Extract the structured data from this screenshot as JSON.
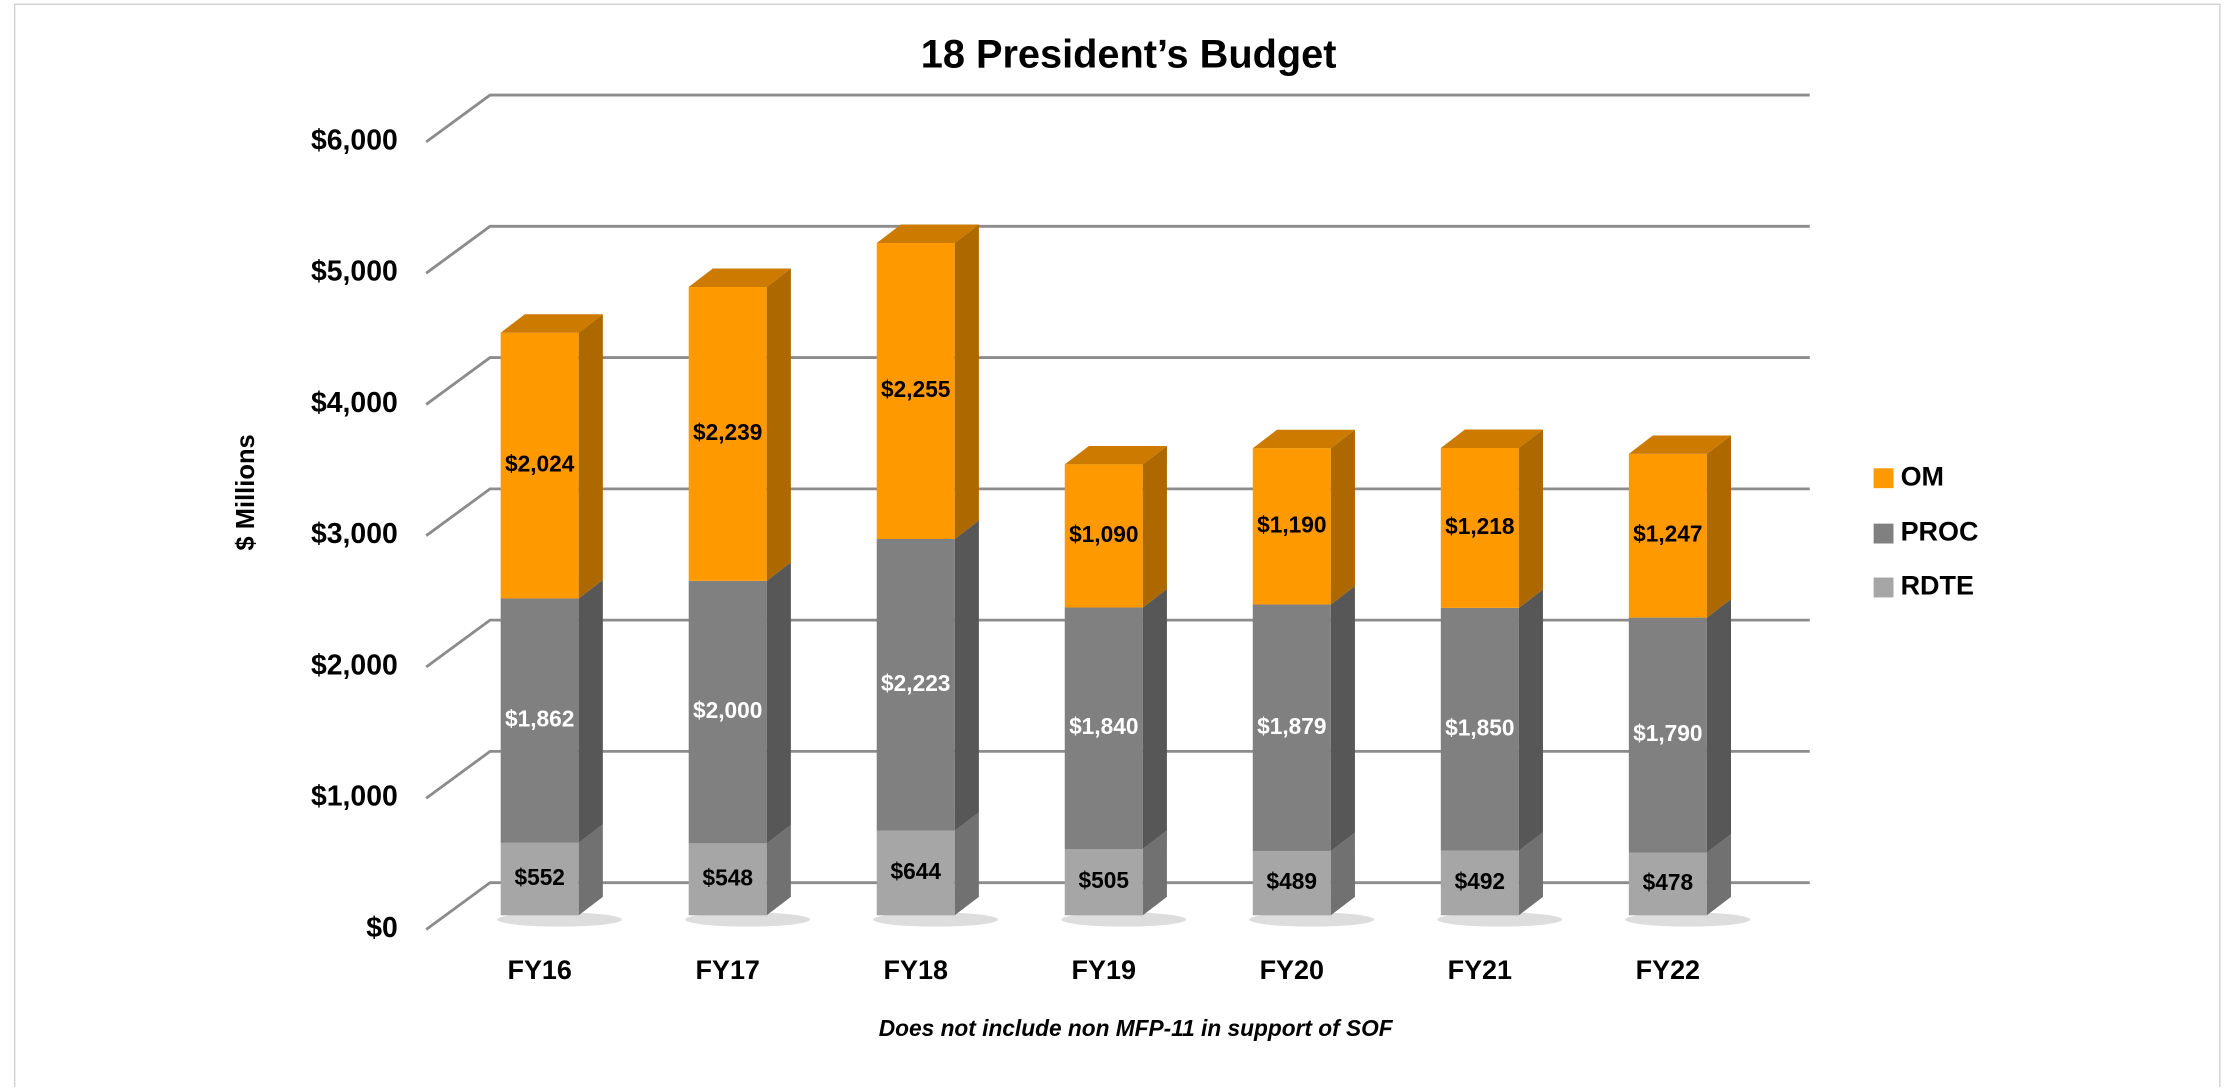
{
  "chart_data": {
    "type": "stacked-bar-3d",
    "title": "18 President’s Budget",
    "y_axis_label": "$ Millions",
    "footnote": "Does not include non MFP-11 in support of SOF",
    "categories": [
      "FY16",
      "FY17",
      "FY18",
      "FY19",
      "FY20",
      "FY21",
      "FY22"
    ],
    "series": [
      {
        "name": "RDTE",
        "color": "#a6a6a6",
        "values": [
          552,
          548,
          644,
          505,
          489,
          492,
          478
        ],
        "value_labels": [
          "$552",
          "$548",
          "$644",
          "$505",
          "$489",
          "$492",
          "$478"
        ]
      },
      {
        "name": "PROC",
        "color": "#808080",
        "values": [
          1862,
          2000,
          2223,
          1840,
          1879,
          1850,
          1790
        ],
        "value_labels": [
          "$1,862",
          "$2,000",
          "$2,223",
          "$1,840",
          "$1,879",
          "$1,850",
          "$1,790"
        ]
      },
      {
        "name": "OM",
        "color": "#ff9900",
        "values": [
          2024,
          2239,
          2255,
          1090,
          1190,
          1218,
          1247
        ],
        "value_labels": [
          "$2,024",
          "$2,239",
          "$2,255",
          "$1,090",
          "$1,190",
          "$1,218",
          "$1,247"
        ]
      }
    ],
    "ylim": [
      0,
      6000
    ],
    "yticks": [
      {
        "value": 0,
        "label": "$0"
      },
      {
        "value": 1000,
        "label": "$1,000"
      },
      {
        "value": 2000,
        "label": "$2,000"
      },
      {
        "value": 3000,
        "label": "$3,000"
      },
      {
        "value": 4000,
        "label": "$4,000"
      },
      {
        "value": 5000,
        "label": "$5,000"
      },
      {
        "value": 6000,
        "label": "$6,000"
      }
    ],
    "grid": true,
    "legend": "right"
  }
}
